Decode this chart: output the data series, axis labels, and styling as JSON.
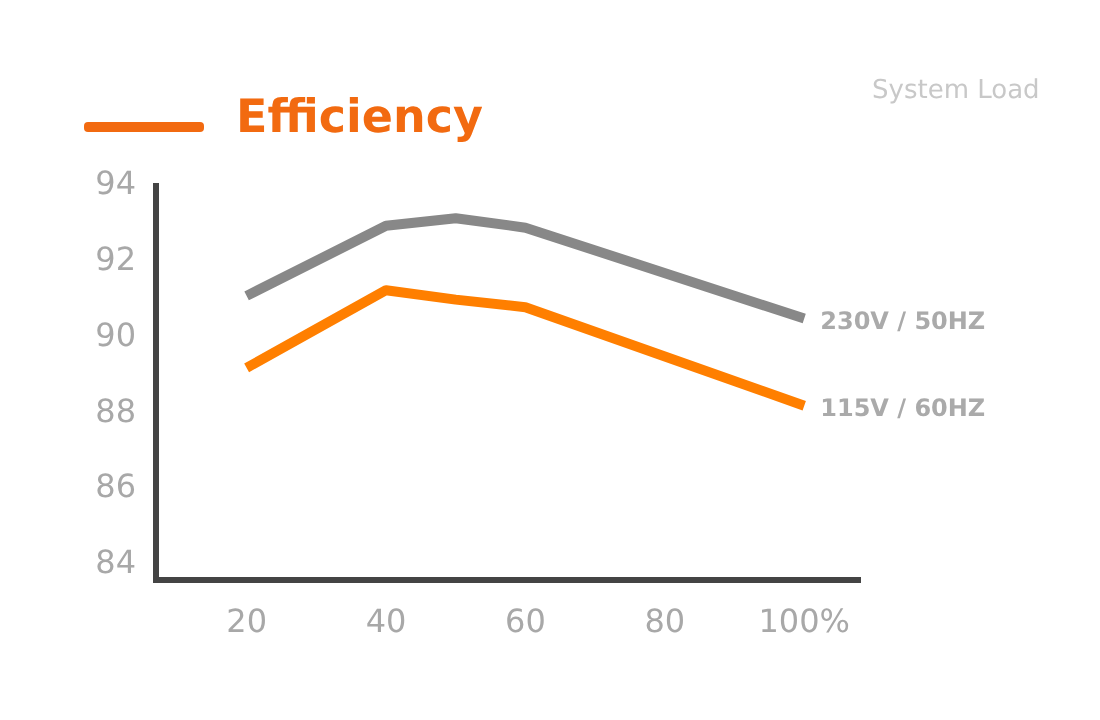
{
  "chart_data": {
    "type": "line",
    "title": "Efficiency",
    "xlabel": "System Load",
    "x": [
      20,
      40,
      50,
      60,
      100
    ],
    "series": [
      {
        "name": "230V / 50HZ",
        "color": "#888888",
        "values": [
          91.1,
          92.95,
          93.15,
          92.9,
          90.5
        ]
      },
      {
        "name": "115V / 60HZ",
        "color": "#ff7f00",
        "values": [
          89.2,
          91.25,
          91.0,
          90.8,
          88.2
        ]
      }
    ],
    "xlim": [
      7,
      108
    ],
    "xticks": [
      20,
      40,
      60,
      80,
      {
        "value": 100,
        "label": "100%"
      }
    ],
    "ylim": [
      83.6,
      94
    ],
    "yticks": [
      84,
      86,
      88,
      90,
      92,
      94
    ],
    "grid": false,
    "legend": false,
    "marker": "none",
    "line_style": "solid"
  }
}
